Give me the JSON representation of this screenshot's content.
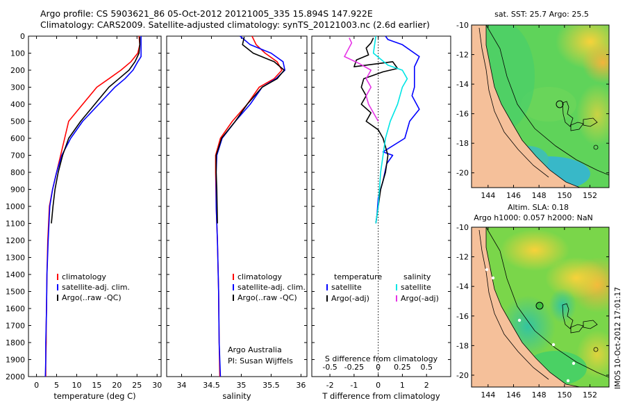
{
  "header": {
    "line1": "Argo profile: CS 5903621_86 05-Oct-2012 20121005_335 15.894S 147.922E",
    "line2": "Climatology: CARS2009. Satellite-adjusted climatology: synTS_20121003.nc (2.6d earlier)"
  },
  "watermark": "IMOS 10-Oct-2012 17:01:17",
  "colors": {
    "climatology": "#ff0000",
    "satellite": "#0000ff",
    "argo": "#000000",
    "sal_sat": "#00e5e5",
    "sal_argo": "#e633e6",
    "land": "#f5c09a",
    "sea_green": "#4cd94c"
  },
  "chart_data": [
    {
      "id": "temperature",
      "type": "line",
      "xlabel": "temperature (deg C)",
      "ylabel": "",
      "xlim": [
        -2,
        31
      ],
      "ylim": [
        2000,
        0
      ],
      "y_reversed": true,
      "xticks": [
        0,
        5,
        10,
        15,
        20,
        25,
        30
      ],
      "yticks": [
        0,
        100,
        200,
        300,
        400,
        500,
        600,
        700,
        800,
        900,
        1000,
        1100,
        1200,
        1300,
        1400,
        1500,
        1600,
        1700,
        1800,
        1900,
        2000
      ],
      "legend": {
        "position": "lower-left",
        "entries": [
          "climatology",
          "satellite-adj. clim.",
          "Argo(..raw -QC)"
        ]
      },
      "series": [
        {
          "name": "climatology",
          "color": "climatology",
          "x": [
            25.5,
            25.7,
            25.2,
            23.5,
            21,
            18,
            15,
            11.5,
            8,
            7,
            6,
            5,
            4,
            3.2,
            2.8,
            2.6,
            2.5,
            2.4,
            2.4,
            2.3,
            2.3,
            2.3
          ],
          "y": [
            0,
            50,
            100,
            150,
            200,
            250,
            300,
            400,
            500,
            600,
            700,
            800,
            900,
            1000,
            1200,
            1400,
            1600,
            1700,
            1800,
            1900,
            1960,
            2000
          ]
        },
        {
          "name": "satellite-adj. clim.",
          "color": "satellite",
          "x": [
            26,
            26,
            26,
            25.2,
            24,
            22,
            19.5,
            15.5,
            11.5,
            8.5,
            6.3,
            5,
            4,
            3.3,
            2.9,
            2.6,
            2.5,
            2.4,
            2.3,
            2.3,
            2.2
          ],
          "y": [
            0,
            50,
            120,
            150,
            200,
            250,
            300,
            400,
            500,
            600,
            700,
            800,
            900,
            1000,
            1200,
            1400,
            1600,
            1700,
            1800,
            1900,
            2000
          ]
        },
        {
          "name": "Argo(..raw -QC)",
          "color": "argo",
          "x": [
            25.7,
            25.7,
            25.5,
            24.5,
            23,
            20.5,
            18,
            14.5,
            11,
            8,
            6.5,
            5.4,
            4.6,
            4.1,
            3.7
          ],
          "y": [
            5,
            50,
            100,
            150,
            200,
            250,
            300,
            400,
            500,
            600,
            700,
            800,
            900,
            1000,
            1100
          ]
        }
      ]
    },
    {
      "id": "salinity",
      "type": "line",
      "xlabel": "salinity",
      "ylabel": "",
      "xlim": [
        33.75,
        36.1
      ],
      "ylim": [
        2000,
        0
      ],
      "y_reversed": true,
      "xticks": [
        34,
        34.5,
        35,
        35.5,
        36
      ],
      "legend": {
        "position": "lower-right",
        "entries": [
          "climatology",
          "satellite-adj. clim.",
          "Argo(..raw -QC)"
        ]
      },
      "annotation": [
        "Argo Australia",
        "PI: Susan Wijffels"
      ],
      "series": [
        {
          "name": "climatology",
          "color": "climatology",
          "x": [
            35.18,
            35.25,
            35.4,
            35.6,
            35.68,
            35.55,
            35.3,
            35.1,
            34.85,
            34.65,
            34.57,
            34.57,
            34.58,
            34.6,
            34.62,
            34.63,
            34.64
          ],
          "y": [
            0,
            50,
            100,
            150,
            200,
            250,
            300,
            400,
            500,
            600,
            700,
            800,
            1000,
            1200,
            1500,
            1800,
            2000
          ]
        },
        {
          "name": "satellite-adj. clim.",
          "color": "satellite",
          "x": [
            34.98,
            35.15,
            35.5,
            35.7,
            35.73,
            35.58,
            35.35,
            35.15,
            34.9,
            34.68,
            34.59,
            34.58,
            34.58,
            34.6,
            34.62,
            34.63,
            34.65
          ],
          "y": [
            0,
            50,
            100,
            150,
            200,
            250,
            300,
            400,
            500,
            600,
            700,
            800,
            1000,
            1200,
            1500,
            1800,
            2000
          ]
        },
        {
          "name": "Argo(..raw -QC)",
          "color": "argo",
          "x": [
            35.05,
            35.02,
            35.2,
            35.55,
            35.72,
            35.6,
            35.35,
            35.1,
            34.9,
            34.67,
            34.58,
            34.58,
            34.59,
            34.6
          ],
          "y": [
            5,
            50,
            100,
            150,
            200,
            250,
            300,
            400,
            500,
            600,
            700,
            800,
            900,
            1100
          ]
        }
      ]
    },
    {
      "id": "difference",
      "type": "line",
      "xlabel": "T difference from climatology",
      "x2label": "S difference from climatology",
      "xlim": [
        -2.75,
        3
      ],
      "ylim": [
        2000,
        0
      ],
      "y_reversed": true,
      "xticks": [
        -2,
        -1,
        0,
        1,
        2
      ],
      "x2ticks": [
        {
          "label": "-0.5",
          "at": -2
        },
        {
          "label": "-0.25",
          "at": -1
        },
        {
          "label": "0",
          "at": 0
        },
        {
          "label": "0.25",
          "at": 1
        },
        {
          "label": "0.5",
          "at": 2
        }
      ],
      "legend": {
        "position": "lower-center",
        "groups": [
          {
            "title": "temperature",
            "entries": [
              "satellite",
              "Argo(-adj)"
            ]
          },
          {
            "title": "salinity",
            "entries": [
              "satellite",
              "Argo(-adj)"
            ]
          }
        ]
      },
      "series": [
        {
          "name": "temperature satellite",
          "color": "satellite",
          "x": [
            0.3,
            0.4,
            1.0,
            1.7,
            1.5,
            1.5,
            1.5,
            1.4,
            1.7,
            1.3,
            1.1,
            0.2,
            0.6,
            0.35,
            0.2,
            0.0,
            -0.05,
            -0.1
          ],
          "y": [
            0,
            20,
            50,
            120,
            180,
            250,
            300,
            350,
            430,
            500,
            600,
            680,
            700,
            750,
            850,
            950,
            1050,
            1100
          ]
        },
        {
          "name": "temperature Argo(-adj)",
          "color": "argo",
          "x": [
            -0.2,
            -0.3,
            -0.5,
            -0.4,
            -0.9,
            -1.0,
            0.6,
            0.8,
            0.2,
            -0.6,
            -0.7,
            -0.5,
            -0.7,
            -0.3,
            -0.5,
            0.0,
            0.2,
            0.4,
            0.3,
            0.1,
            0.0,
            -0.1
          ],
          "y": [
            10,
            40,
            70,
            110,
            140,
            180,
            150,
            190,
            210,
            250,
            300,
            350,
            400,
            450,
            500,
            550,
            600,
            700,
            800,
            900,
            1000,
            1100
          ]
        },
        {
          "name": "salinity satellite",
          "color": "sal_sat",
          "x": [
            -0.1,
            -0.2,
            0.4,
            1.0,
            1.2,
            1.0,
            0.8,
            0.5,
            0.3,
            0.1,
            0.0,
            -0.1
          ],
          "y": [
            0,
            100,
            170,
            200,
            250,
            300,
            400,
            500,
            600,
            800,
            1000,
            1100
          ]
        },
        {
          "name": "salinity Argo(-adj)",
          "color": "sal_argo",
          "x": [
            -1.2,
            -1.1,
            -1.4,
            -0.8,
            -0.3,
            -0.5,
            -0.3,
            -0.5,
            -0.4,
            -0.2,
            0.0
          ],
          "y": [
            10,
            40,
            120,
            160,
            200,
            250,
            300,
            350,
            400,
            450,
            500
          ]
        }
      ]
    }
  ],
  "maps": [
    {
      "id": "sst-map",
      "title": "sat. SST: 25.7 Argo: 25.5",
      "xticks": [
        "144",
        "146",
        "148",
        "150",
        "152"
      ],
      "yticks": [
        "-10",
        "-12",
        "-14",
        "-16",
        "-18",
        "-20"
      ]
    },
    {
      "id": "sla-map",
      "title": "Altim. SLA: 0.18",
      "subtitle": "Argo h1000: 0.057 h2000: NaN",
      "xticks": [
        "144",
        "146",
        "148",
        "150",
        "152"
      ],
      "yticks": [
        "-10",
        "-12",
        "-14",
        "-16",
        "-18",
        "-20"
      ]
    }
  ]
}
